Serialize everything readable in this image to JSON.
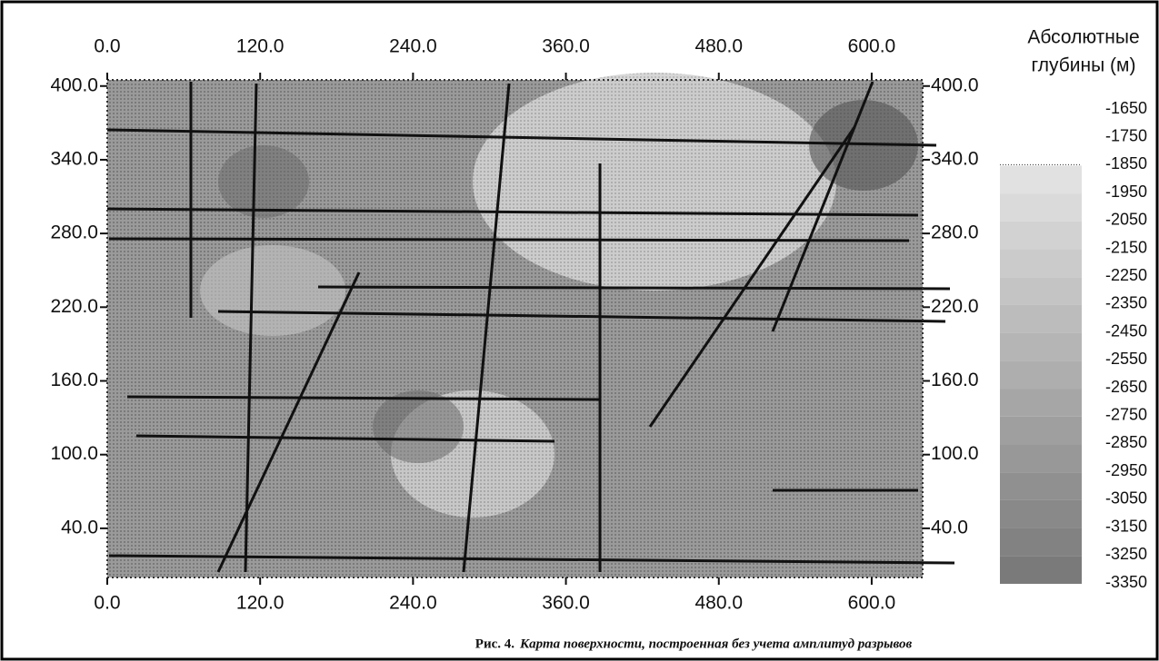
{
  "chart_data": {
    "type": "contour",
    "xticks": [
      {
        "value": 0,
        "label": "0.0"
      },
      {
        "value": 120,
        "label": "120.0"
      },
      {
        "value": 240,
        "label": "240.0"
      },
      {
        "value": 360,
        "label": "360.0"
      },
      {
        "value": 480,
        "label": "480.0"
      },
      {
        "value": 600,
        "label": "600.0"
      }
    ],
    "yticks": [
      {
        "value": 400,
        "label": "400.0"
      },
      {
        "value": 340,
        "label": "340.0"
      },
      {
        "value": 280,
        "label": "280.0"
      },
      {
        "value": 220,
        "label": "220.0"
      },
      {
        "value": 160,
        "label": "160.0"
      },
      {
        "value": 100,
        "label": "100.0"
      },
      {
        "value": 40,
        "label": "40.0"
      }
    ],
    "xlim": [
      0,
      640
    ],
    "ylim": [
      0,
      405
    ],
    "colorbar_title": [
      "Абсолютные",
      "глубины (м)"
    ],
    "colorbar_levels": [
      -1650,
      -1750,
      -1850,
      -1950,
      -2050,
      -2150,
      -2250,
      -2350,
      -2450,
      -2550,
      -2650,
      -2750,
      -2850,
      -2950,
      -3050,
      -3150,
      -3250,
      -3350
    ],
    "caption_label": "Рис. 4.",
    "caption": "Карта поверхности, построенная без учета амплитуд разрывов"
  }
}
